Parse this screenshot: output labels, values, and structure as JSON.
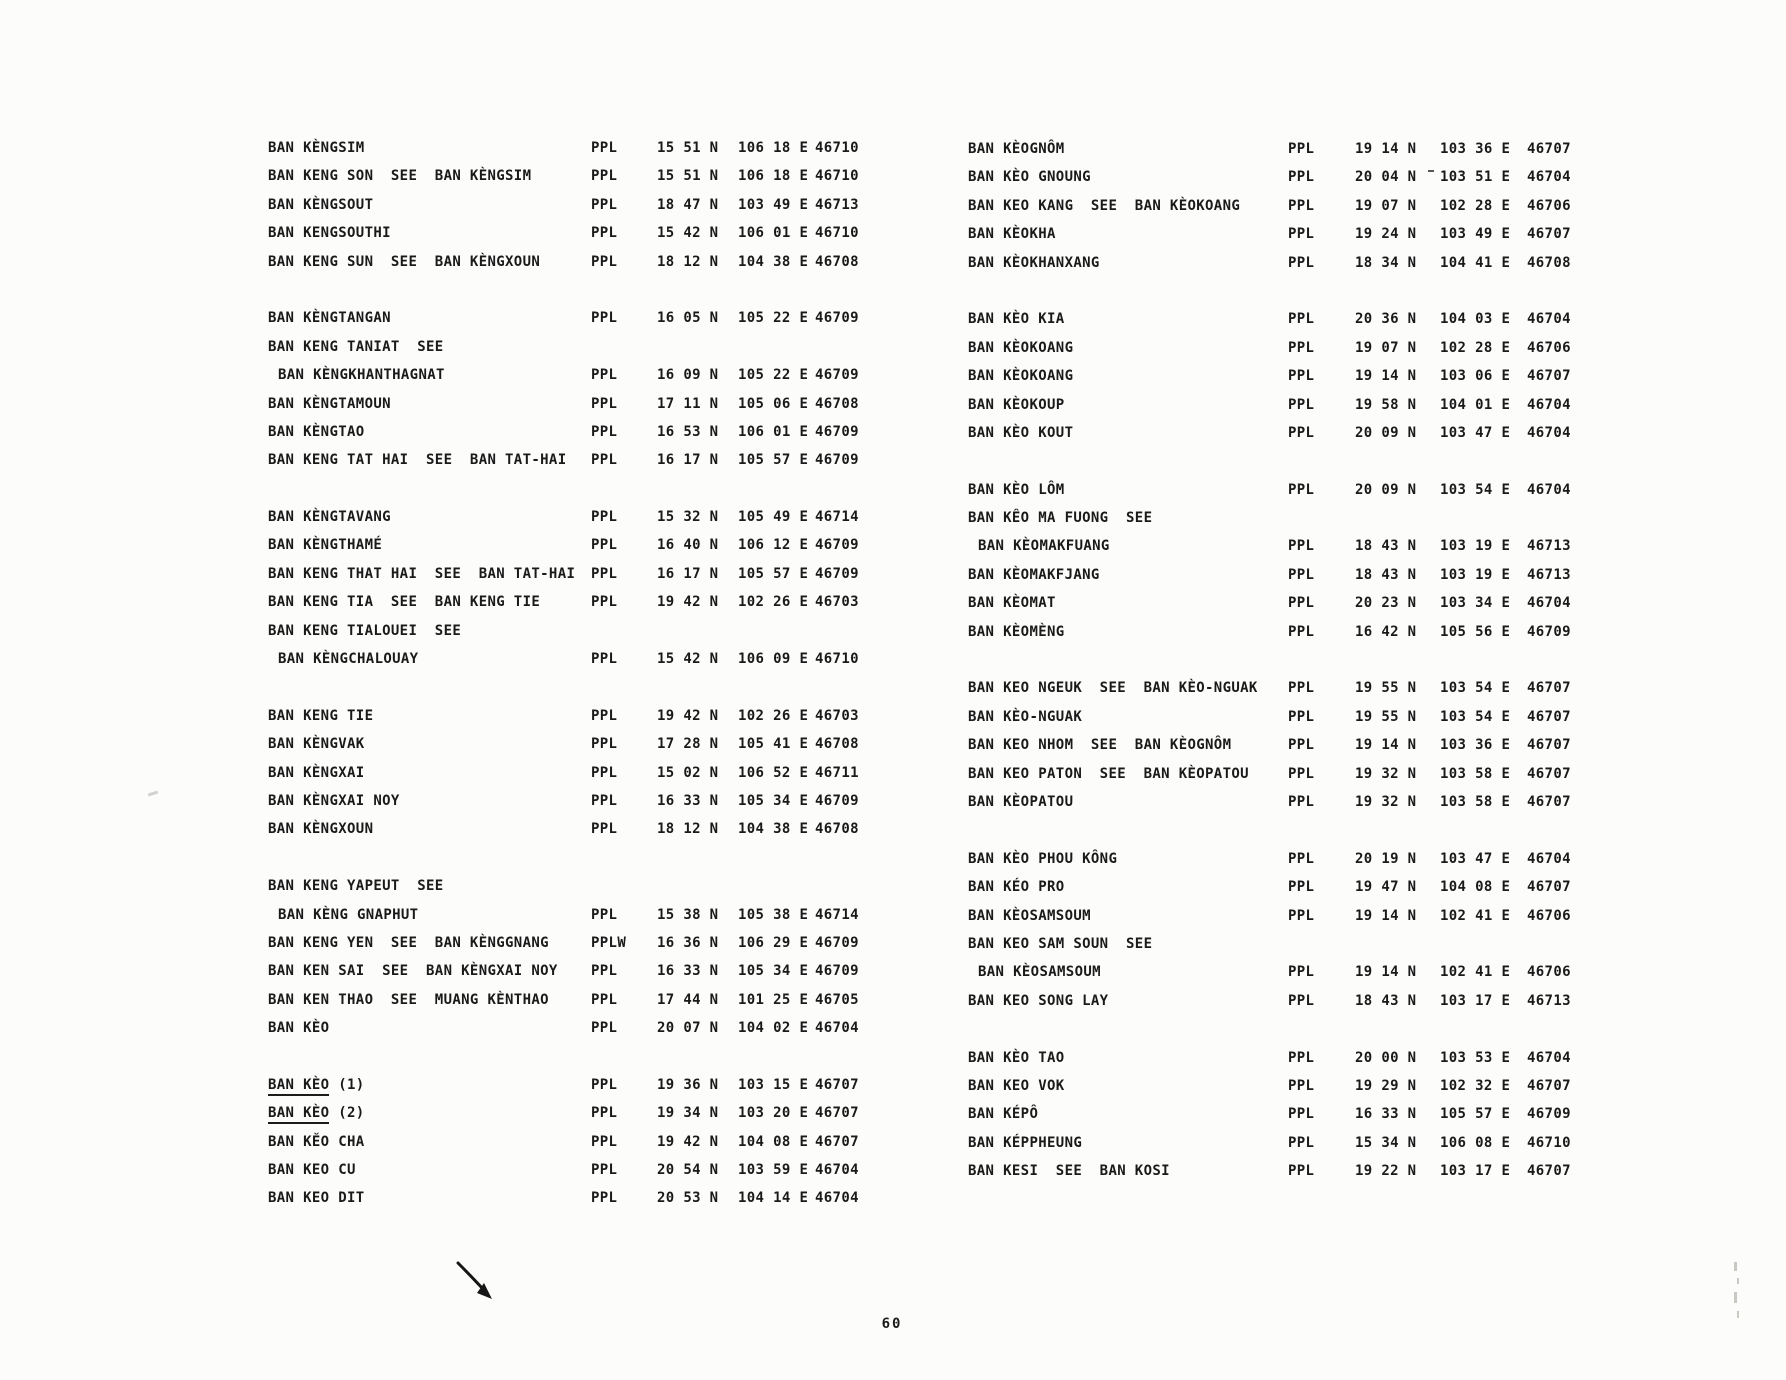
{
  "page": {
    "number": "60"
  },
  "columns": [
    {
      "groups": [
        [
          {
            "name": "BAN KÈNGSIM",
            "desig": "PPL",
            "lat": "15 51 N",
            "lon": "106 18 E",
            "code": "46710"
          },
          {
            "name": "BAN KENG SON  SEE  BAN KÈNGSIM",
            "desig": "PPL",
            "lat": "15 51 N",
            "lon": "106 18 E",
            "code": "46710"
          },
          {
            "name": "BAN KÈNGSOUT",
            "desig": "PPL",
            "lat": "18 47 N",
            "lon": "103 49 E",
            "code": "46713"
          },
          {
            "name": "BAN KENGSOUTHI",
            "desig": "PPL",
            "lat": "15 42 N",
            "lon": "106 01 E",
            "code": "46710"
          },
          {
            "name": "BAN KENG SUN  SEE  BAN KÈNGXOUN",
            "desig": "PPL",
            "lat": "18 12 N",
            "lon": "104 38 E",
            "code": "46708"
          }
        ],
        [
          {
            "name": "BAN KÈNGTANGAN",
            "desig": "PPL",
            "lat": "16 05 N",
            "lon": "105 22 E",
            "code": "46709"
          },
          {
            "name": "BAN KENG TANIAT  SEE"
          },
          {
            "name": "BAN KÈNGKHANTHAGNAT",
            "indent": true,
            "desig": "PPL",
            "lat": "16 09 N",
            "lon": "105 22 E",
            "code": "46709"
          },
          {
            "name": "BAN KÈNGTAMOUN",
            "desig": "PPL",
            "lat": "17 11 N",
            "lon": "105 06 E",
            "code": "46708"
          },
          {
            "name": "BAN KÈNGTAO",
            "desig": "PPL",
            "lat": "16 53 N",
            "lon": "106 01 E",
            "code": "46709"
          },
          {
            "name": "BAN KENG TAT HAI  SEE  BAN TAT-HAI",
            "desig": "PPL",
            "lat": "16 17 N",
            "lon": "105 57 E",
            "code": "46709"
          }
        ],
        [
          {
            "name": "BAN KÈNGTAVANG",
            "desig": "PPL",
            "lat": "15 32 N",
            "lon": "105 49 E",
            "code": "46714"
          },
          {
            "name": "BAN KÈNGTHAMÉ",
            "desig": "PPL",
            "lat": "16 40 N",
            "lon": "106 12 E",
            "code": "46709"
          },
          {
            "name": "BAN KENG THAT HAI  SEE  BAN TAT-HAI",
            "desig": "PPL",
            "lat": "16 17 N",
            "lon": "105 57 E",
            "code": "46709"
          },
          {
            "name": "BAN KENG TIA  SEE  BAN KENG TIE",
            "desig": "PPL",
            "lat": "19 42 N",
            "lon": "102 26 E",
            "code": "46703"
          },
          {
            "name": "BAN KENG TIALOUEI  SEE"
          },
          {
            "name": "BAN KÈNGCHALOUAY",
            "indent": true,
            "desig": "PPL",
            "lat": "15 42 N",
            "lon": "106 09 E",
            "code": "46710"
          }
        ],
        [
          {
            "name": "BAN KENG TIE",
            "desig": "PPL",
            "lat": "19 42 N",
            "lon": "102 26 E",
            "code": "46703"
          },
          {
            "name": "BAN KÈNGVAK",
            "desig": "PPL",
            "lat": "17 28 N",
            "lon": "105 41 E",
            "code": "46708"
          },
          {
            "name": "BAN KÈNGXAI",
            "desig": "PPL",
            "lat": "15 02 N",
            "lon": "106 52 E",
            "code": "46711"
          },
          {
            "name": "BAN KÈNGXAI NOY",
            "desig": "PPL",
            "lat": "16 33 N",
            "lon": "105 34 E",
            "code": "46709"
          },
          {
            "name": "BAN KÈNGXOUN",
            "desig": "PPL",
            "lat": "18 12 N",
            "lon": "104 38 E",
            "code": "46708"
          }
        ],
        [
          {
            "name": "BAN KENG YAPEUT  SEE"
          },
          {
            "name": "BAN KÈNG GNAPHUT",
            "indent": true,
            "desig": "PPL",
            "lat": "15 38 N",
            "lon": "105 38 E",
            "code": "46714"
          },
          {
            "name": "BAN KENG YEN  SEE  BAN KÈNGGNANG",
            "desig": "PPLW",
            "lat": "16 36 N",
            "lon": "106 29 E",
            "code": "46709"
          },
          {
            "name": "BAN KEN SAI  SEE  BAN KÈNGXAI NOY",
            "desig": "PPL",
            "lat": "16 33 N",
            "lon": "105 34 E",
            "code": "46709"
          },
          {
            "name": "BAN KEN THAO  SEE  MUANG KÈNTHAO",
            "desig": "PPL",
            "lat": "17 44 N",
            "lon": "101 25 E",
            "code": "46705"
          },
          {
            "name": "BAN KÈO",
            "desig": "PPL",
            "lat": "20 07 N",
            "lon": "104 02 E",
            "code": "46704"
          }
        ],
        [
          {
            "underline": "BAN KÈO",
            "suffix": " (1)",
            "desig": "PPL",
            "lat": "19 36 N",
            "lon": "103 15 E",
            "code": "46707"
          },
          {
            "underline": "BAN KÈO",
            "suffix": " (2)",
            "desig": "PPL",
            "lat": "19 34 N",
            "lon": "103 20 E",
            "code": "46707"
          },
          {
            "name": "BAN KĚO CHA",
            "desig": "PPL",
            "lat": "19 42 N",
            "lon": "104 08 E",
            "code": "46707"
          },
          {
            "name": "BAN KEO CU",
            "desig": "PPL",
            "lat": "20 54 N",
            "lon": "103 59 E",
            "code": "46704"
          },
          {
            "name": "BAN KEO DIT",
            "desig": "PPL",
            "lat": "20 53 N",
            "lon": "104 14 E",
            "code": "46704"
          }
        ]
      ]
    },
    {
      "groups": [
        [
          {
            "name": "BAN KÈOGNÔM",
            "desig": "PPL",
            "lat": "19 14 N",
            "lon": "103 36 E",
            "code": "46707"
          },
          {
            "name": "BAN KÈO GNOUNG",
            "desig": "PPL",
            "lat": "20 04 N",
            "lon": "103 51 E",
            "code": "46704"
          },
          {
            "name": "BAN KEO KANG  SEE  BAN KÈOKOANG",
            "desig": "PPL",
            "lat": "19 07 N",
            "lon": "102 28 E",
            "code": "46706"
          },
          {
            "name": "BAN KÈOKHA",
            "desig": "PPL",
            "lat": "19 24 N",
            "lon": "103 49 E",
            "code": "46707"
          },
          {
            "name": "BAN KÈOKHANXANG",
            "desig": "PPL",
            "lat": "18 34 N",
            "lon": "104 41 E",
            "code": "46708"
          }
        ],
        [
          {
            "name": "BAN KÈO KIA",
            "desig": "PPL",
            "lat": "20 36 N",
            "lon": "104 03 E",
            "code": "46704"
          },
          {
            "name": "BAN KÈOKOANG",
            "desig": "PPL",
            "lat": "19 07 N",
            "lon": "102 28 E",
            "code": "46706"
          },
          {
            "name": "BAN KÈOKOANG",
            "desig": "PPL",
            "lat": "19 14 N",
            "lon": "103 06 E",
            "code": "46707"
          },
          {
            "name": "BAN KÈOKOUP",
            "desig": "PPL",
            "lat": "19 58 N",
            "lon": "104 01 E",
            "code": "46704"
          },
          {
            "name": "BAN KÈO KOUT",
            "desig": "PPL",
            "lat": "20 09 N",
            "lon": "103 47 E",
            "code": "46704"
          }
        ],
        [
          {
            "name": "BAN KÈO LÔM",
            "desig": "PPL",
            "lat": "20 09 N",
            "lon": "103 54 E",
            "code": "46704"
          },
          {
            "name": "BAN KÊO MA FUONG  SEE"
          },
          {
            "name": "BAN KÈOMAKFUANG",
            "indent": true,
            "desig": "PPL",
            "lat": "18 43 N",
            "lon": "103 19 E",
            "code": "46713"
          },
          {
            "name": "BAN KÈOMAKFJANG",
            "desig": "PPL",
            "lat": "18 43 N",
            "lon": "103 19 E",
            "code": "46713"
          },
          {
            "name": "BAN KÈOMAT",
            "desig": "PPL",
            "lat": "20 23 N",
            "lon": "103 34 E",
            "code": "46704"
          },
          {
            "name": "BAN KÈOMÈNG",
            "desig": "PPL",
            "lat": "16 42 N",
            "lon": "105 56 E",
            "code": "46709"
          }
        ],
        [
          {
            "name": "BAN KEO NGEUK  SEE  BAN KÈO-NGUAK",
            "desig": "PPL",
            "lat": "19 55 N",
            "lon": "103 54 E",
            "code": "46707"
          },
          {
            "name": "BAN KÈO-NGUAK",
            "desig": "PPL",
            "lat": "19 55 N",
            "lon": "103 54 E",
            "code": "46707"
          },
          {
            "name": "BAN KEO NHOM  SEE  BAN KÈOGNÔM",
            "desig": "PPL",
            "lat": "19 14 N",
            "lon": "103 36 E",
            "code": "46707"
          },
          {
            "name": "BAN KEO PATON  SEE  BAN KÈOPATOU",
            "desig": "PPL",
            "lat": "19 32 N",
            "lon": "103 58 E",
            "code": "46707"
          },
          {
            "name": "BAN KÈOPATOU",
            "desig": "PPL",
            "lat": "19 32 N",
            "lon": "103 58 E",
            "code": "46707"
          }
        ],
        [
          {
            "name": "BAN KÈO PHOU KÔNG",
            "desig": "PPL",
            "lat": "20 19 N",
            "lon": "103 47 E",
            "code": "46704"
          },
          {
            "name": "BAN KÉO PRO",
            "desig": "PPL",
            "lat": "19 47 N",
            "lon": "104 08 E",
            "code": "46707"
          },
          {
            "name": "BAN KÈOSAMSOUM",
            "desig": "PPL",
            "lat": "19 14 N",
            "lon": "102 41 E",
            "code": "46706"
          },
          {
            "name": "BAN KEO SAM SOUN  SEE"
          },
          {
            "name": "BAN KÈOSAMSOUM",
            "indent": true,
            "desig": "PPL",
            "lat": "19 14 N",
            "lon": "102 41 E",
            "code": "46706"
          },
          {
            "name": "BAN KEO SONG LAY",
            "desig": "PPL",
            "lat": "18 43 N",
            "lon": "103 17 E",
            "code": "46713"
          }
        ],
        [
          {
            "name": "BAN KÈO TAO",
            "desig": "PPL",
            "lat": "20 00 N",
            "lon": "103 53 E",
            "code": "46704"
          },
          {
            "name": "BAN KEO VOK",
            "desig": "PPL",
            "lat": "19 29 N",
            "lon": "102 32 E",
            "code": "46707"
          },
          {
            "name": "BAN KÉPÔ",
            "desig": "PPL",
            "lat": "16 33 N",
            "lon": "105 57 E",
            "code": "46709"
          },
          {
            "name": "BAN KÉPPHEUNG",
            "desig": "PPL",
            "lat": "15 34 N",
            "lon": "106 08 E",
            "code": "46710"
          },
          {
            "name": "BAN KESI  SEE  BAN KOSI",
            "desig": "PPL",
            "lat": "19 22 N",
            "lon": "103 17 E",
            "code": "46707"
          }
        ]
      ]
    }
  ]
}
